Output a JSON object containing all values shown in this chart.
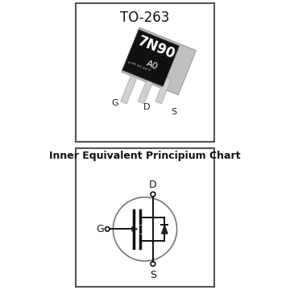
{
  "top_label": "TO-263",
  "chip_text_line1": "7N90",
  "chip_text_line2": "A0",
  "bottom_title": "Inner Equivalent Principium Chart",
  "bg_color": "#ffffff",
  "border_color": "#555555",
  "chip_body_color": "#111111",
  "chip_text_color": "#ffffff",
  "lead_color": "#d0d0d0",
  "lead_edge_color": "#aaaaaa",
  "pin_label_color": "#222222",
  "mosfet_circle_color": "#777777",
  "mosfet_line_color": "#111111",
  "dot_color": "#555555"
}
